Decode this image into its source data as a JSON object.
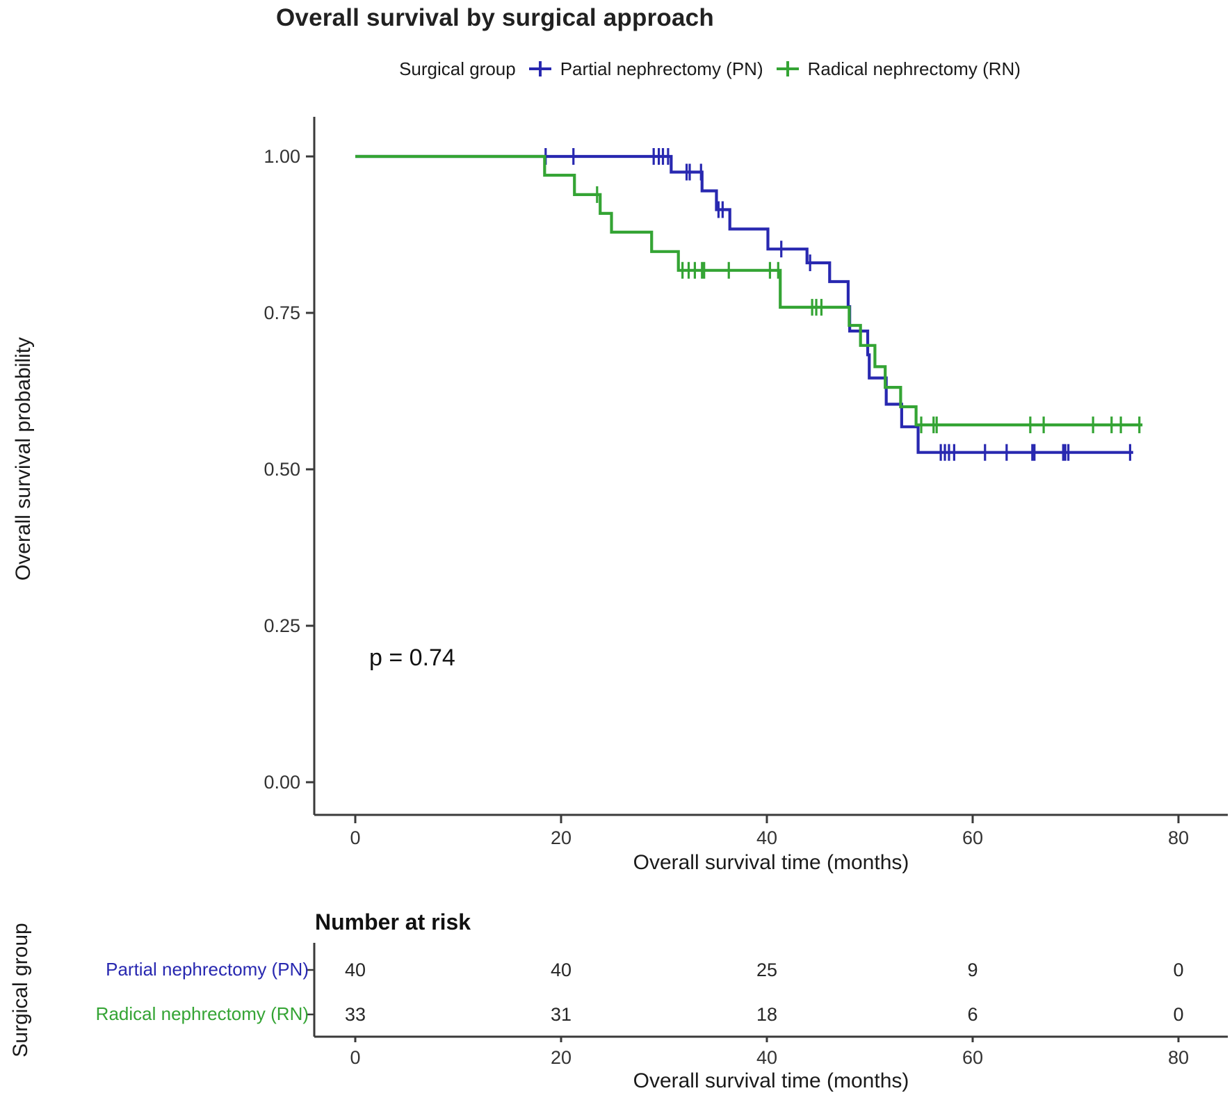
{
  "title": "Overall survival by surgical approach",
  "legend": {
    "title": "Surgical group",
    "items": [
      {
        "label": "Partial nephrectomy (PN)",
        "color": "#2828B0"
      },
      {
        "label": "Radical nephrectomy (RN)",
        "color": "#34A434"
      }
    ]
  },
  "axes": {
    "y_label": "Overall survival probability",
    "x_label": "Overall survival time (months)",
    "x_tick_labels": [
      "0",
      "20",
      "40",
      "60",
      "80"
    ],
    "y_tick_labels": [
      "0.00",
      "0.25",
      "0.50",
      "0.75",
      "1.00"
    ]
  },
  "chart_data": {
    "type": "line",
    "subtype": "kaplan_meier_step",
    "title": "Overall survival by surgical approach",
    "xlabel": "Overall survival time (months)",
    "ylabel": "Overall survival probability",
    "xlim": [
      0,
      80
    ],
    "ylim": [
      0,
      1
    ],
    "x_ticks": [
      0,
      20,
      40,
      60,
      80
    ],
    "y_ticks": [
      0,
      0.25,
      0.5,
      0.75,
      1
    ],
    "grid": false,
    "legend_position": "top",
    "p_value": "p = 0.74",
    "series": [
      {
        "name": "Partial nephrectomy (PN)",
        "color": "#2828B0",
        "start": [
          0,
          1.0
        ],
        "steps": [
          [
            30.7,
            0.975
          ],
          [
            33.7,
            0.945
          ],
          [
            35.1,
            0.915
          ],
          [
            36.4,
            0.884
          ],
          [
            40.1,
            0.852
          ],
          [
            43.9,
            0.83
          ],
          [
            46.1,
            0.8
          ],
          [
            47.9,
            0.76
          ],
          [
            48.05,
            0.721
          ],
          [
            49.8,
            0.683
          ],
          [
            49.95,
            0.646
          ],
          [
            51.6,
            0.604
          ],
          [
            53.1,
            0.568
          ],
          [
            54.7,
            0.527
          ]
        ],
        "end_time": 75.6,
        "censor_marks": [
          [
            18.5,
            1
          ],
          [
            21.2,
            1
          ],
          [
            29.0,
            1
          ],
          [
            29.5,
            1
          ],
          [
            29.9,
            1
          ],
          [
            30.4,
            1
          ],
          [
            32.2,
            0.975
          ],
          [
            32.5,
            0.975
          ],
          [
            33.6,
            0.975
          ],
          [
            35.3,
            0.915
          ],
          [
            35.7,
            0.915
          ],
          [
            41.4,
            0.852
          ],
          [
            44.2,
            0.83
          ],
          [
            56.9,
            0.527
          ],
          [
            57.3,
            0.527
          ],
          [
            57.7,
            0.527
          ],
          [
            58.2,
            0.527
          ],
          [
            61.2,
            0.527
          ],
          [
            63.3,
            0.527
          ],
          [
            65.8,
            0.527
          ],
          [
            66.0,
            0.527
          ],
          [
            68.8,
            0.527
          ],
          [
            69.0,
            0.527
          ],
          [
            69.3,
            0.527
          ],
          [
            75.3,
            0.527
          ]
        ]
      },
      {
        "name": "Radical nephrectomy (RN)",
        "color": "#34A434",
        "start": [
          0,
          1.0
        ],
        "steps": [
          [
            18.4,
            0.97
          ],
          [
            21.3,
            0.939
          ],
          [
            23.8,
            0.909
          ],
          [
            24.9,
            0.879
          ],
          [
            28.8,
            0.848
          ],
          [
            31.4,
            0.818
          ],
          [
            41.3,
            0.759
          ],
          [
            48.0,
            0.73
          ],
          [
            49.1,
            0.698
          ],
          [
            50.5,
            0.664
          ],
          [
            51.5,
            0.631
          ],
          [
            53.0,
            0.6
          ],
          [
            54.5,
            0.571
          ]
        ],
        "end_time": 76.5,
        "censor_marks": [
          [
            23.5,
            0.939
          ],
          [
            31.8,
            0.818
          ],
          [
            32.4,
            0.818
          ],
          [
            33.0,
            0.818
          ],
          [
            33.7,
            0.818
          ],
          [
            33.9,
            0.818
          ],
          [
            36.3,
            0.818
          ],
          [
            40.3,
            0.818
          ],
          [
            41.1,
            0.818
          ],
          [
            44.4,
            0.759
          ],
          [
            44.8,
            0.759
          ],
          [
            45.3,
            0.759
          ],
          [
            55.0,
            0.571
          ],
          [
            56.2,
            0.571
          ],
          [
            56.5,
            0.571
          ],
          [
            65.6,
            0.571
          ],
          [
            66.9,
            0.571
          ],
          [
            71.7,
            0.571
          ],
          [
            73.5,
            0.571
          ],
          [
            74.4,
            0.571
          ],
          [
            76.2,
            0.571
          ]
        ]
      }
    ]
  },
  "risk_table": {
    "title": "Number at risk",
    "y_label": "Surgical group",
    "x_label": "Overall survival time (months)",
    "x_ticks": [
      0,
      20,
      40,
      60,
      80
    ],
    "x_tick_labels": [
      "0",
      "20",
      "40",
      "60",
      "80"
    ],
    "rows": [
      {
        "label": "Partial nephrectomy (PN)",
        "color": "#2828B0",
        "values": [
          "40",
          "40",
          "25",
          "9",
          "0"
        ]
      },
      {
        "label": "Radical nephrectomy (RN)",
        "color": "#34A434",
        "values": [
          "33",
          "31",
          "18",
          "6",
          "0"
        ]
      }
    ]
  }
}
